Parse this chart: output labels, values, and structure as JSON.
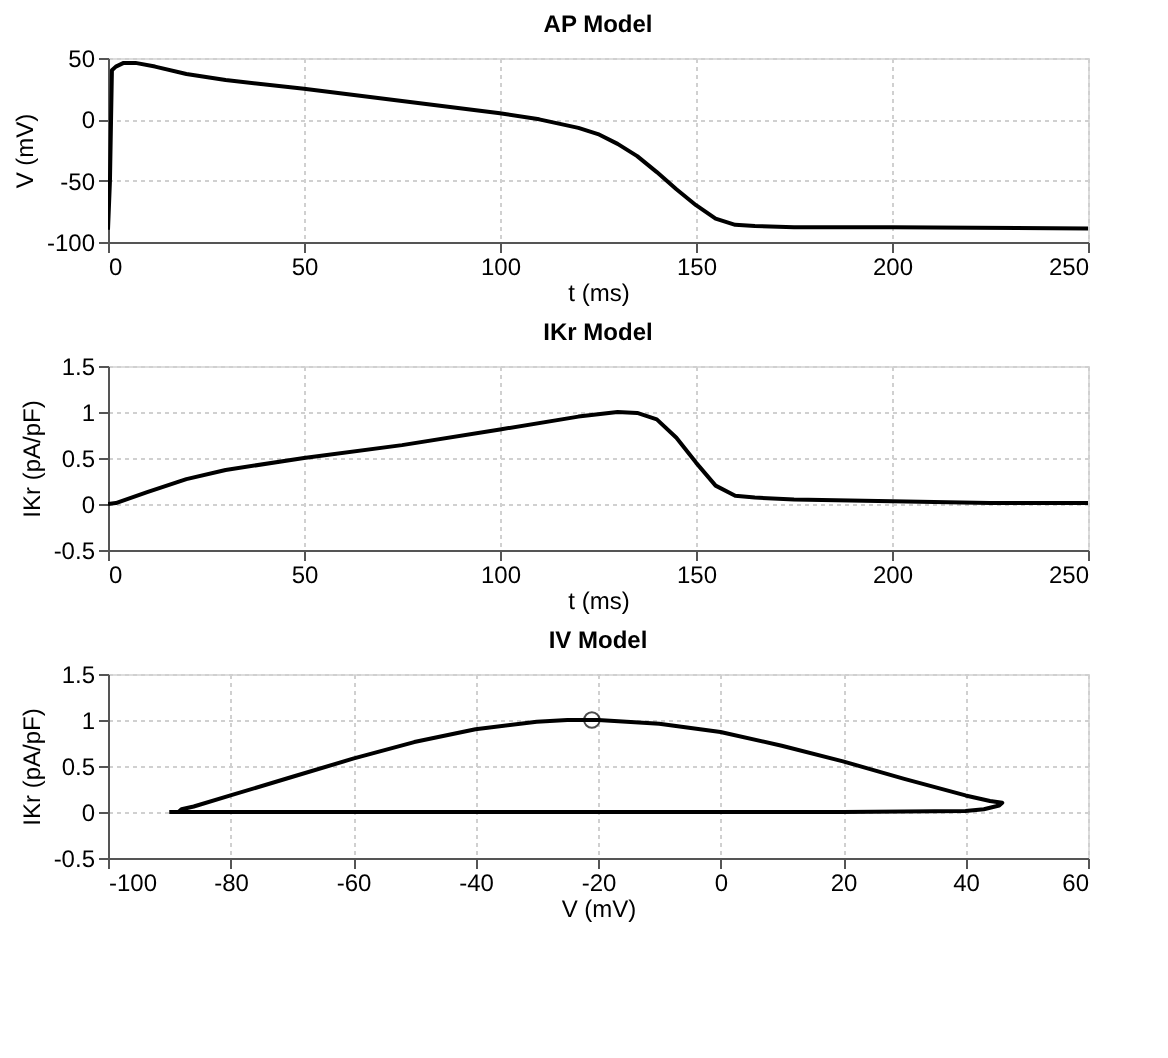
{
  "chart_data": [
    {
      "type": "line",
      "title": "AP Model",
      "xlabel": "t (ms)",
      "ylabel": "V (mV)",
      "xlim": [
        0,
        250
      ],
      "xticks": [
        0,
        50,
        100,
        150,
        200,
        250
      ],
      "ylim": [
        -100,
        50
      ],
      "yticks": [
        -100,
        -50,
        0,
        50
      ],
      "grid": true,
      "series": [
        {
          "color": "#000000",
          "x": [
            0,
            0.5,
            1,
            2,
            4,
            7,
            12,
            20,
            30,
            50,
            75,
            100,
            110,
            120,
            125,
            130,
            135,
            140,
            145,
            150,
            155,
            160,
            165,
            175,
            200,
            250
          ],
          "values": [
            -90,
            -50,
            40,
            43,
            46,
            46,
            43,
            37,
            32,
            25,
            15,
            5,
            0,
            -7,
            -12,
            -20,
            -30,
            -43,
            -57,
            -70,
            -81,
            -86,
            -87,
            -88,
            -88,
            -89
          ]
        }
      ]
    },
    {
      "type": "line",
      "title": "IKr Model",
      "xlabel": "t (ms)",
      "ylabel": "IKr (pA/pF)",
      "xlim": [
        0,
        250
      ],
      "xticks": [
        0,
        50,
        100,
        150,
        200,
        250
      ],
      "ylim": [
        -0.5,
        1.5
      ],
      "yticks": [
        -0.5,
        0,
        0.5,
        1,
        1.5
      ],
      "grid": true,
      "series": [
        {
          "color": "#000000",
          "x": [
            0,
            2,
            10,
            20,
            30,
            50,
            75,
            100,
            120,
            130,
            135,
            140,
            145,
            150,
            155,
            160,
            165,
            175,
            200,
            225,
            250
          ],
          "values": [
            0,
            0.01,
            0.13,
            0.27,
            0.37,
            0.5,
            0.64,
            0.81,
            0.95,
            1.0,
            0.99,
            0.92,
            0.72,
            0.45,
            0.2,
            0.09,
            0.07,
            0.05,
            0.03,
            0.01,
            0.01
          ]
        }
      ]
    },
    {
      "type": "line",
      "title": "IV Model",
      "xlabel": "V (mV)",
      "ylabel": "IKr (pA/pF)",
      "xlim": [
        -100,
        60
      ],
      "xticks": [
        -100,
        -80,
        -60,
        -40,
        -20,
        0,
        20,
        40,
        60
      ],
      "ylim": [
        -0.5,
        1.5
      ],
      "yticks": [
        -0.5,
        0,
        0.5,
        1,
        1.5
      ],
      "grid": true,
      "series": [
        {
          "color": "#000000",
          "x": [
            -89,
            -60,
            -20,
            20,
            40,
            43,
            45.5,
            46,
            44,
            40,
            30,
            20,
            10,
            0,
            -10,
            -20,
            -25,
            -30,
            -40,
            -50,
            -60,
            -70,
            -80,
            -86,
            -88,
            -88.5,
            -90
          ],
          "values": [
            0,
            0,
            0,
            0,
            0.01,
            0.03,
            0.07,
            0.1,
            0.12,
            0.18,
            0.36,
            0.55,
            0.72,
            0.87,
            0.96,
            1.0,
            1.0,
            0.98,
            0.9,
            0.76,
            0.58,
            0.38,
            0.18,
            0.06,
            0.03,
            0,
            0
          ]
        },
        {
          "type": "scatter",
          "marker": "circle",
          "color": "#000000",
          "x": [
            -21
          ],
          "values": [
            1
          ]
        }
      ]
    }
  ]
}
